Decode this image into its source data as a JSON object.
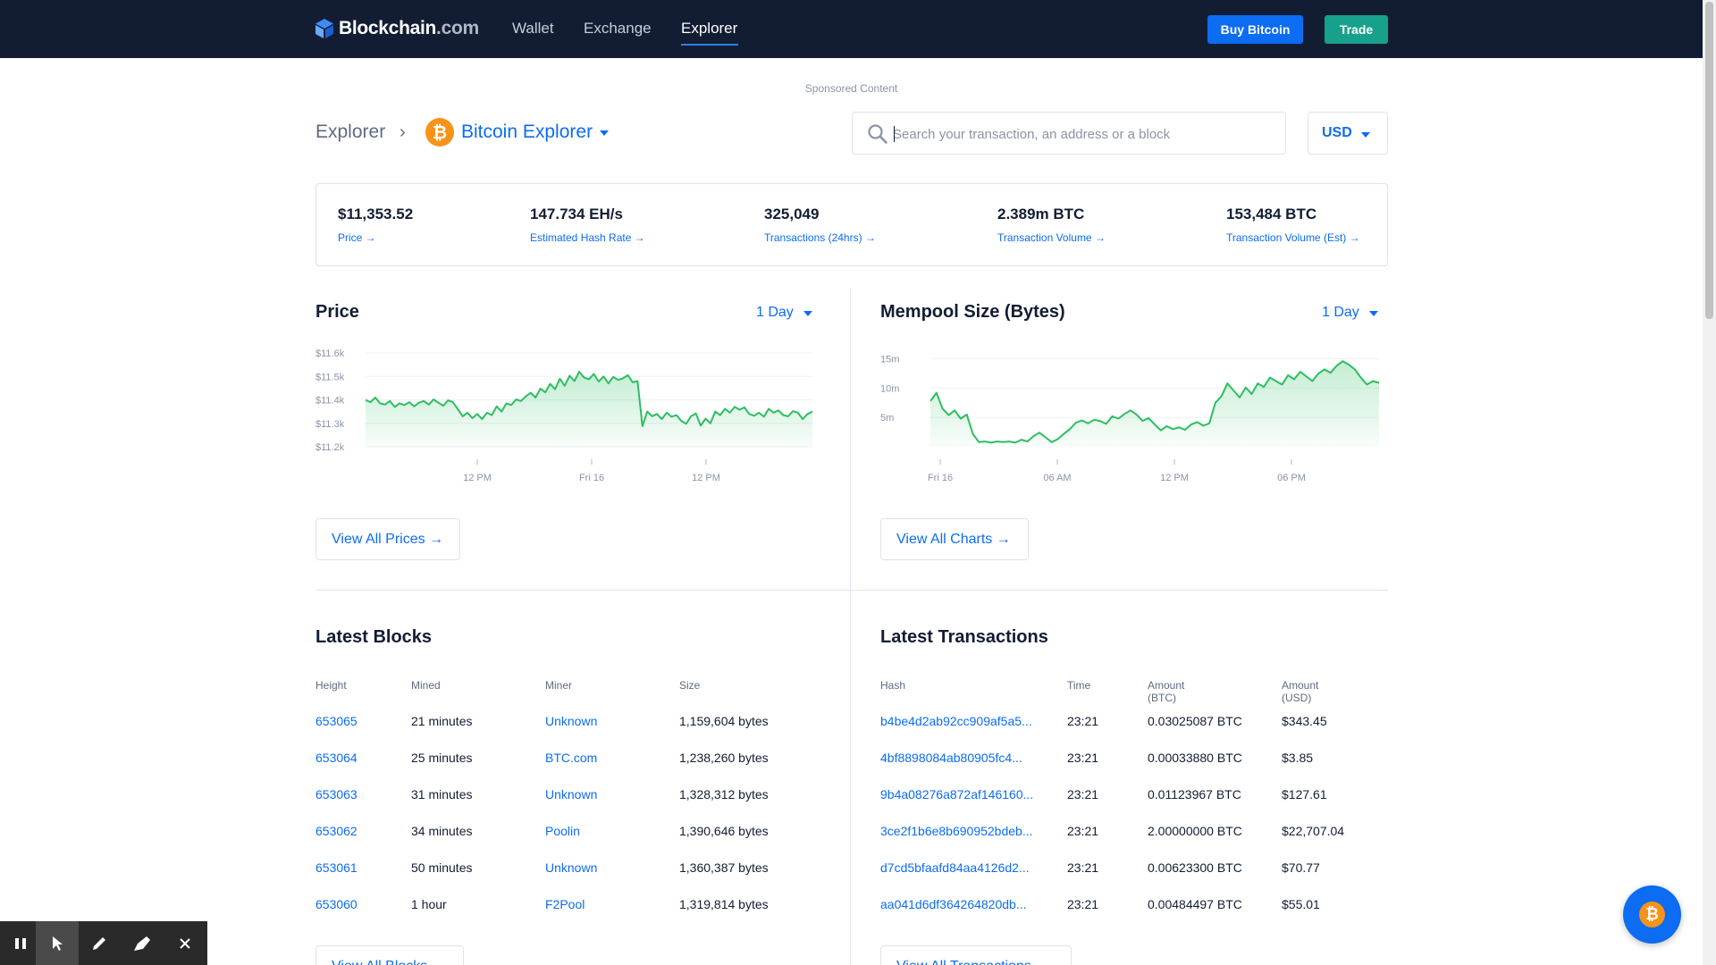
{
  "nav": {
    "logo_main": "Blockchain",
    "logo_suffix": ".com",
    "links": [
      "Wallet",
      "Exchange",
      "Explorer"
    ],
    "active": "Explorer",
    "buy_label": "Buy Bitcoin",
    "trade_label": "Trade"
  },
  "sponsored": "Sponsored Content",
  "breadcrumb": {
    "root": "Explorer",
    "separator": "›",
    "current": "Bitcoin Explorer",
    "coin_symbol": "₿"
  },
  "search": {
    "placeholder": "Search your transaction, an address or a block",
    "value": ""
  },
  "currency": "USD",
  "stats": [
    {
      "value": "$11,353.52",
      "label": "Price →"
    },
    {
      "value": "147.734 EH/s",
      "label": "Estimated Hash Rate →"
    },
    {
      "value": "325,049",
      "label": "Transactions (24hrs) →"
    },
    {
      "value": "2.389m BTC",
      "label": "Transaction Volume →"
    },
    {
      "value": "153,484 BTC",
      "label": "Transaction Volume (Est) →"
    }
  ],
  "price_chart": {
    "title": "Price",
    "range": "1 Day",
    "view_all": "View All Prices →",
    "chart_data": {
      "type": "area",
      "title": "Price",
      "ylim": [
        11200,
        11600
      ],
      "y_ticks": [
        "$11.6k",
        "$11.5k",
        "$11.4k",
        "$11.3k",
        "$11.2k"
      ],
      "x_ticks": [
        "12 PM",
        "Fri 16",
        "12 PM"
      ],
      "values": [
        11400,
        11390,
        11410,
        11385,
        11380,
        11395,
        11370,
        11385,
        11378,
        11390,
        11372,
        11388,
        11395,
        11380,
        11402,
        11388,
        11375,
        11398,
        11390,
        11360,
        11330,
        11345,
        11322,
        11340,
        11318,
        11345,
        11335,
        11372,
        11350,
        11385,
        11378,
        11402,
        11395,
        11415,
        11430,
        11410,
        11448,
        11432,
        11468,
        11445,
        11490,
        11460,
        11503,
        11480,
        11520,
        11495,
        11488,
        11510,
        11478,
        11500,
        11470,
        11498,
        11485,
        11492,
        11505,
        11475,
        11480,
        11288,
        11350,
        11330,
        11340,
        11318,
        11345,
        11328,
        11335,
        11310,
        11298,
        11330,
        11342,
        11290,
        11320,
        11300,
        11350,
        11335,
        11362,
        11345,
        11370,
        11358,
        11368,
        11340,
        11332,
        11345,
        11328,
        11362,
        11345,
        11355,
        11335,
        11330,
        11352,
        11345,
        11318,
        11340,
        11350
      ]
    }
  },
  "mempool_chart": {
    "title": "Mempool Size (Bytes)",
    "range": "1 Day",
    "view_all": "View All Charts →",
    "chart_data": {
      "type": "area",
      "title": "Mempool Size (Bytes)",
      "ylim": [
        0,
        16
      ],
      "y_ticks": [
        "15m",
        "10m",
        "5m"
      ],
      "x_ticks": [
        "Fri 16",
        "06 AM",
        "12 PM",
        "06 PM"
      ],
      "values": [
        7.8,
        9.2,
        6.5,
        5.4,
        6.2,
        4.8,
        5.5,
        2.2,
        0.8,
        0.9,
        0.7,
        0.9,
        0.8,
        0.9,
        0.7,
        1.2,
        0.9,
        1.8,
        2.4,
        1.6,
        0.8,
        1.3,
        2.2,
        3.0,
        4.1,
        4.5,
        4.0,
        4.6,
        4.4,
        3.9,
        5.2,
        4.8,
        5.6,
        6.2,
        5.5,
        4.4,
        4.9,
        3.8,
        2.8,
        3.5,
        3.0,
        3.3,
        2.9,
        3.8,
        4.2,
        3.6,
        4.0,
        7.5,
        8.6,
        10.8,
        9.6,
        8.4,
        10.1,
        9.0,
        10.8,
        10.2,
        11.8,
        11.2,
        10.6,
        12.2,
        11.5,
        12.8,
        12.0,
        11.2,
        12.5,
        13.2,
        12.6,
        13.8,
        14.6,
        14.0,
        13.2,
        11.8,
        10.6,
        11.2,
        10.9
      ]
    }
  },
  "latest_blocks": {
    "title": "Latest Blocks",
    "headers": [
      "Height",
      "Mined",
      "Miner",
      "Size"
    ],
    "rows": [
      [
        "653065",
        "21 minutes",
        "Unknown",
        "1,159,604 bytes"
      ],
      [
        "653064",
        "25 minutes",
        "BTC.com",
        "1,238,260 bytes"
      ],
      [
        "653063",
        "31 minutes",
        "Unknown",
        "1,328,312 bytes"
      ],
      [
        "653062",
        "34 minutes",
        "Poolin",
        "1,390,646 bytes"
      ],
      [
        "653061",
        "50 minutes",
        "Unknown",
        "1,360,387 bytes"
      ],
      [
        "653060",
        "1 hour",
        "F2Pool",
        "1,319,814 bytes"
      ]
    ],
    "view_all": "View All Blocks →"
  },
  "latest_transactions": {
    "title": "Latest Transactions",
    "headers": [
      "Hash",
      "Time",
      "Amount (BTC)",
      "Amount (USD)"
    ],
    "rows": [
      [
        "b4be4d2ab92cc909af5a5...",
        "23:21",
        "0.03025087 BTC",
        "$343.45"
      ],
      [
        "4bf8898084ab80905fc4...",
        "23:21",
        "0.00033880 BTC",
        "$3.85"
      ],
      [
        "9b4a08276a872af146160...",
        "23:21",
        "0.01123967 BTC",
        "$127.61"
      ],
      [
        "3ce2f1b6e8b690952bdeb...",
        "23:21",
        "2.00000000 BTC",
        "$22,707.04"
      ],
      [
        "d7cd5bfaafd84aa4126d2...",
        "23:21",
        "0.00623300 BTC",
        "$70.77"
      ],
      [
        "aa041d6df364264820db...",
        "23:21",
        "0.00484497 BTC",
        "$55.01"
      ]
    ],
    "view_all": "View All Transactions →"
  },
  "fab": {
    "coin_symbol": "₿"
  },
  "toolbar": {
    "tools": [
      "pause-icon",
      "cursor-icon",
      "pen-icon",
      "highlighter-icon",
      "close-icon"
    ]
  },
  "colors": {
    "navy": "#121d33",
    "blue": "#0c6cf2",
    "green": "#17a08b",
    "chart_line": "#2dbe60",
    "bitcoin": "#f7931a"
  }
}
